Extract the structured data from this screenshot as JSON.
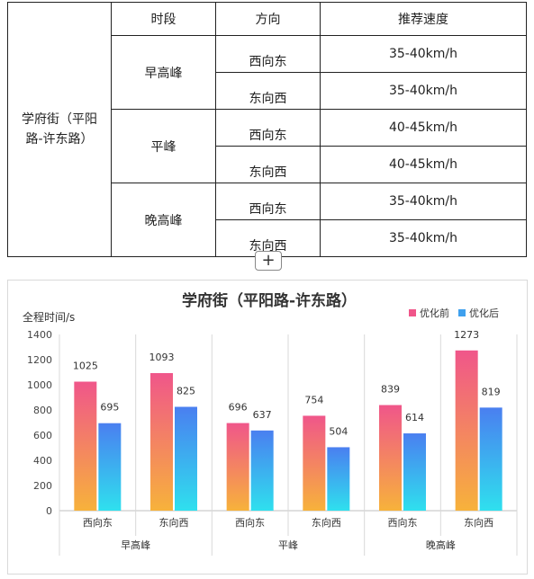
{
  "table": {
    "headers": [
      "时段",
      "方向",
      "推荐速度"
    ],
    "road": "学府街（平阳路-许东路）",
    "periods": [
      {
        "name": "早高峰",
        "rows": [
          {
            "dir": "西向东",
            "speed": "35-40km/h"
          },
          {
            "dir": "东向西",
            "speed": "35-40km/h"
          }
        ]
      },
      {
        "name": "平峰",
        "rows": [
          {
            "dir": "西向东",
            "speed": "40-45km/h"
          },
          {
            "dir": "东向西",
            "speed": "40-45km/h"
          }
        ]
      },
      {
        "name": "晚高峰",
        "rows": [
          {
            "dir": "西向东",
            "speed": "35-40km/h"
          },
          {
            "dir": "东向西",
            "speed": "35-40km/h"
          }
        ]
      }
    ]
  },
  "plus_label": "+",
  "chart_data": {
    "type": "bar",
    "title": "学府街（平阳路-许东路）",
    "ylabel": "全程时间/s",
    "ylim": [
      0,
      1400
    ],
    "yticks": [
      0,
      200,
      400,
      600,
      800,
      1000,
      1200,
      1400
    ],
    "categories": [
      "西向东",
      "东向西",
      "西向东",
      "东向西",
      "西向东",
      "东向西"
    ],
    "groups": [
      {
        "name": "早高峰",
        "span": 2
      },
      {
        "name": "平峰",
        "span": 2
      },
      {
        "name": "晚高峰",
        "span": 2
      }
    ],
    "series": [
      {
        "name": "优化前",
        "values": [
          1025,
          1093,
          696,
          754,
          839,
          1273
        ]
      },
      {
        "name": "优化后",
        "values": [
          695,
          825,
          637,
          504,
          614,
          819
        ]
      }
    ],
    "legend": "top-right",
    "grid": false,
    "colors": {
      "before_top": "#f0568a",
      "before_bottom": "#f7b23b",
      "after_top": "#4a7ff0",
      "after_bottom": "#2fe0ee",
      "legend_before": "#f0568a",
      "legend_after": "#3fa0ee"
    }
  }
}
